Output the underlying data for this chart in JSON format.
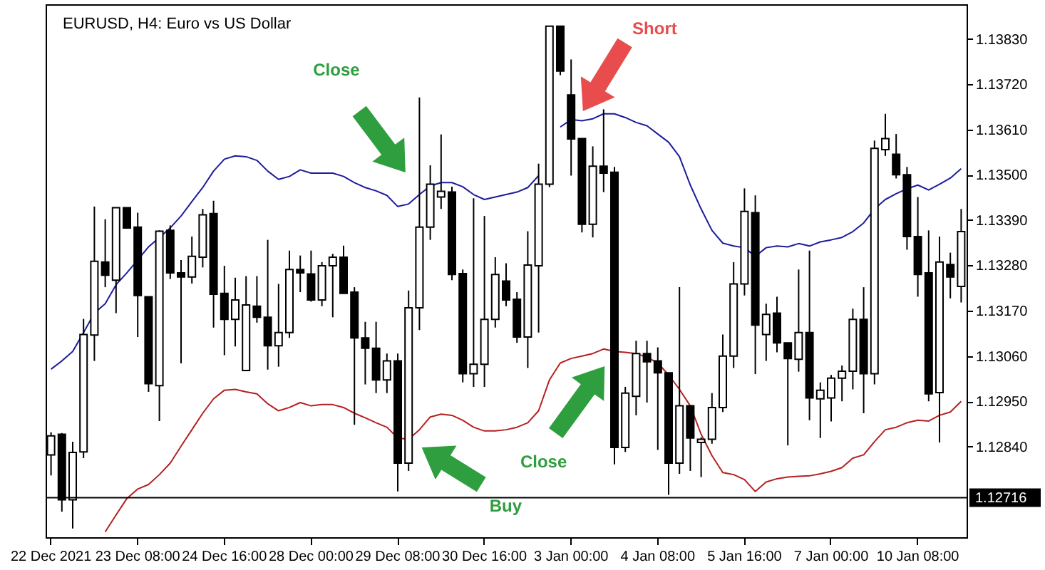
{
  "chart_data": {
    "type": "candlestick",
    "title": "EURUSD, H4:  Euro vs US Dollar",
    "categories": [
      "22 Dec 2021",
      null,
      null,
      null,
      null,
      null,
      null,
      null,
      "23 Dec 08:00",
      null,
      null,
      null,
      null,
      null,
      null,
      null,
      "24 Dec 16:00",
      null,
      null,
      null,
      null,
      null,
      null,
      null,
      "28 Dec 00:00",
      null,
      null,
      null,
      null,
      null,
      null,
      null,
      "29 Dec 08:00",
      null,
      null,
      null,
      null,
      null,
      null,
      null,
      "30 Dec 16:00",
      null,
      null,
      null,
      null,
      null,
      null,
      null,
      "3 Jan 00:00",
      null,
      null,
      null,
      null,
      null,
      null,
      null,
      "4 Jan 08:00",
      null,
      null,
      null,
      null,
      null,
      null,
      null,
      "5 Jan 16:00",
      null,
      null,
      null,
      null,
      null,
      null,
      null,
      "7 Jan 00:00",
      null,
      null,
      null,
      null,
      null,
      null,
      null,
      "10 Jan 08:00",
      null,
      null,
      null,
      null
    ],
    "ohlc": [
      [
        1.1282,
        1.12875,
        1.1277,
        1.12866
      ],
      [
        1.1287,
        1.12873,
        1.12682,
        1.12711
      ],
      [
        1.12711,
        1.12852,
        1.12641,
        1.12826
      ],
      [
        1.12827,
        1.1315,
        1.12812,
        1.13112
      ],
      [
        1.13111,
        1.13423,
        1.13048,
        1.1329
      ],
      [
        1.13288,
        1.13392,
        1.13227,
        1.13256
      ],
      [
        1.13244,
        1.13421,
        1.13164,
        1.1342
      ],
      [
        1.1342,
        1.1342,
        1.13369,
        1.13371
      ],
      [
        1.13373,
        1.13408,
        1.13106,
        1.13207
      ],
      [
        1.13204,
        1.13204,
        1.12973,
        1.12993
      ],
      [
        1.12988,
        1.13365,
        1.12902,
        1.13363
      ],
      [
        1.13365,
        1.13377,
        1.13247,
        1.13262
      ],
      [
        1.13262,
        1.13293,
        1.13042,
        1.13252
      ],
      [
        1.13252,
        1.1335,
        1.13236,
        1.13302
      ],
      [
        1.133,
        1.13417,
        1.13275,
        1.13403
      ],
      [
        1.13406,
        1.13437,
        1.13129,
        1.1321
      ],
      [
        1.13212,
        1.13279,
        1.13062,
        1.13149
      ],
      [
        1.13149,
        1.1325,
        1.13083,
        1.13196
      ],
      [
        1.13025,
        1.13254,
        1.13025,
        1.13184
      ],
      [
        1.13181,
        1.13254,
        1.13141,
        1.13154
      ],
      [
        1.13154,
        1.13342,
        1.13027,
        1.13085
      ],
      [
        1.13085,
        1.13235,
        1.13034,
        1.13117
      ],
      [
        1.13117,
        1.13316,
        1.13104,
        1.1327
      ],
      [
        1.1327,
        1.13304,
        1.13215,
        1.13262
      ],
      [
        1.13259,
        1.13316,
        1.13192,
        1.13196
      ],
      [
        1.13196,
        1.13288,
        1.13181,
        1.13279
      ],
      [
        1.13279,
        1.13308,
        1.13154,
        1.133
      ],
      [
        1.133,
        1.13328,
        1.13212,
        1.13212
      ],
      [
        1.13215,
        1.13227,
        1.12893,
        1.13104
      ],
      [
        1.13104,
        1.13143,
        1.12991,
        1.13079
      ],
      [
        1.13079,
        1.13143,
        1.1297,
        1.13002
      ],
      [
        1.13002,
        1.13066,
        1.1297,
        1.13048
      ],
      [
        1.13048,
        1.13066,
        1.12731,
        1.128
      ],
      [
        1.128,
        1.13219,
        1.12781,
        1.13177
      ],
      [
        1.13177,
        1.13688,
        1.13123,
        1.13373
      ],
      [
        1.13373,
        1.13523,
        1.13342,
        1.13477
      ],
      [
        1.13446,
        1.13598,
        1.13417,
        1.1346
      ],
      [
        1.13458,
        1.13471,
        1.13244,
        1.13258
      ],
      [
        1.1326,
        1.1327,
        1.12996,
        1.13017
      ],
      [
        1.13017,
        1.13443,
        1.12985,
        1.1304
      ],
      [
        1.1304,
        1.134,
        1.12985,
        1.13149
      ],
      [
        1.13149,
        1.133,
        1.13129,
        1.13258
      ],
      [
        1.13242,
        1.13285,
        1.13181,
        1.13196
      ],
      [
        1.13198,
        1.13215,
        1.13092,
        1.13106
      ],
      [
        1.13106,
        1.13363,
        1.13031,
        1.13281
      ],
      [
        1.13279,
        1.13527,
        1.13117,
        1.13477
      ],
      [
        1.13477,
        1.13861,
        1.1347,
        1.13861
      ],
      [
        1.13861,
        1.13861,
        1.13742,
        1.13752
      ],
      [
        1.13694,
        1.1378,
        1.13498,
        1.13587
      ],
      [
        1.13588,
        1.13588,
        1.1336,
        1.1338
      ],
      [
        1.1338,
        1.13569,
        1.13348,
        1.13521
      ],
      [
        1.13521,
        1.13659,
        1.13458,
        1.13504
      ],
      [
        1.13506,
        1.13519,
        1.12797,
        1.12838
      ],
      [
        1.12838,
        1.12985,
        1.12827,
        1.1297
      ],
      [
        1.12962,
        1.13097,
        1.12916,
        1.13066
      ],
      [
        1.13066,
        1.13097,
        1.12947,
        1.13046
      ],
      [
        1.13048,
        1.13081,
        1.12832,
        1.13019
      ],
      [
        1.13019,
        1.13019,
        1.12723,
        1.128
      ],
      [
        1.128,
        1.13227,
        1.12774,
        1.12939
      ],
      [
        1.12939,
        1.12939,
        1.12781,
        1.12861
      ],
      [
        1.1285,
        1.12862,
        1.12766,
        1.12858
      ],
      [
        1.12858,
        1.1297,
        1.12847,
        1.12935
      ],
      [
        1.12935,
        1.13112,
        1.12924,
        1.1306
      ],
      [
        1.1306,
        1.13288,
        1.13031,
        1.13235
      ],
      [
        1.13235,
        1.13467,
        1.13207,
        1.13411
      ],
      [
        1.13408,
        1.1345,
        1.13016,
        1.13135
      ],
      [
        1.13112,
        1.13187,
        1.13048,
        1.13161
      ],
      [
        1.13164,
        1.13204,
        1.13069,
        1.13092
      ],
      [
        1.13092,
        1.13092,
        1.12843,
        1.13054
      ],
      [
        1.13052,
        1.1327,
        1.13022,
        1.13117
      ],
      [
        1.13117,
        1.13316,
        1.12904,
        1.12958
      ],
      [
        1.12956,
        1.12996,
        1.12861,
        1.12977
      ],
      [
        1.12958,
        1.13014,
        1.12901,
        1.13006
      ],
      [
        1.13006,
        1.13037,
        1.1295,
        1.13023
      ],
      [
        1.13023,
        1.13175,
        1.12979,
        1.13149
      ],
      [
        1.13149,
        1.13227,
        1.12921,
        1.13017
      ],
      [
        1.13017,
        1.13583,
        1.12991,
        1.13564
      ],
      [
        1.13561,
        1.13648,
        1.13546,
        1.13588
      ],
      [
        1.1355,
        1.13599,
        1.13491,
        1.135
      ],
      [
        1.135,
        1.13519,
        1.13318,
        1.1335
      ],
      [
        1.1335,
        1.13446,
        1.13204,
        1.13258
      ],
      [
        1.13262,
        1.13365,
        1.1295,
        1.12968
      ],
      [
        1.12971,
        1.1335,
        1.1285,
        1.13288
      ],
      [
        1.13282,
        1.13311,
        1.132,
        1.13252
      ],
      [
        1.13229,
        1.13417,
        1.1319,
        1.13362
      ]
    ],
    "series": [
      {
        "type": "line",
        "color": "#1c1c9c",
        "values": [
          1.13028,
          1.13048,
          1.13071,
          1.13117,
          1.13164,
          1.13187,
          1.13233,
          1.13262,
          1.13293,
          1.13325,
          1.13348,
          1.13371,
          1.134,
          1.13435,
          1.13469,
          1.13509,
          1.13538,
          1.13546,
          1.13544,
          1.13535,
          1.13509,
          1.13489,
          1.13496,
          1.13512,
          1.13504,
          1.13504,
          1.13504,
          1.13496,
          1.13481,
          1.13469,
          1.13461,
          1.1345,
          1.13423,
          1.13429,
          1.13452,
          1.13473,
          1.13481,
          1.13481,
          1.13471,
          1.13452,
          1.1344,
          1.13446,
          1.13452,
          1.13458,
          1.13469,
          1.13498,
          null,
          1.13616,
          1.13634,
          1.13631,
          1.13636,
          1.13648,
          1.13648,
          1.13639,
          1.13627,
          1.13619,
          1.13599,
          1.13579,
          1.13544,
          1.13475,
          1.13417,
          1.13365,
          1.13334,
          1.13327,
          1.13323,
          1.13302,
          1.13323,
          1.13327,
          1.13325,
          1.13333,
          1.13327,
          1.13337,
          1.13342,
          1.13348,
          1.13362,
          1.13383,
          1.13417,
          1.1344,
          1.13454,
          1.13466,
          1.13475,
          1.13463,
          1.13477,
          1.13492,
          1.13515
        ]
      },
      {
        "type": "line",
        "color": "#b52020",
        "values": [
          null,
          null,
          null,
          null,
          null,
          1.12633,
          1.12674,
          1.12714,
          1.12737,
          1.12748,
          1.12772,
          1.128,
          1.12841,
          1.12881,
          1.12921,
          1.12956,
          1.12977,
          1.12979,
          1.12973,
          1.12968,
          1.12944,
          1.12927,
          1.12935,
          1.12947,
          1.12939,
          1.12942,
          1.12942,
          1.12935,
          1.12921,
          1.1291,
          1.12898,
          1.12887,
          1.12861,
          1.12858,
          1.12881,
          1.12912,
          1.12919,
          1.12916,
          1.12904,
          1.12887,
          1.12878,
          1.12878,
          1.12881,
          1.12887,
          1.12898,
          1.12927,
          1.13002,
          1.13043,
          1.13054,
          1.1306,
          1.13066,
          1.13077,
          1.13071,
          1.13069,
          1.13066,
          1.13057,
          1.13043,
          1.13014,
          1.12979,
          1.12939,
          1.1287,
          1.12818,
          1.12777,
          1.12772,
          1.1276,
          1.12731,
          1.12754,
          1.12762,
          1.12766,
          1.12768,
          1.12769,
          1.12774,
          1.1278,
          1.12789,
          1.12812,
          1.1282,
          1.12852,
          1.12881,
          1.12887,
          1.12898,
          1.12904,
          1.12902,
          1.12916,
          1.12924,
          1.1295
        ]
      }
    ],
    "ylim": [
      1.1262,
      1.13914
    ],
    "yticks": [
      {
        "value": 1.1284,
        "label": "1.12840"
      },
      {
        "value": 1.1295,
        "label": "1.12950"
      },
      {
        "value": 1.1306,
        "label": "1.13060"
      },
      {
        "value": 1.1317,
        "label": "1.13170"
      },
      {
        "value": 1.1328,
        "label": "1.13280"
      },
      {
        "value": 1.1339,
        "label": "1.13390"
      },
      {
        "value": 1.135,
        "label": "1.13500"
      },
      {
        "value": 1.1361,
        "label": "1.13610"
      },
      {
        "value": 1.1372,
        "label": "1.13720"
      },
      {
        "value": 1.1383,
        "label": "1.13830"
      }
    ],
    "ref_lines": [
      {
        "axis": "y",
        "value": 1.12716,
        "label": "1.12716"
      }
    ],
    "annotations": [
      "Close",
      "Short",
      "Close",
      "Buy"
    ]
  }
}
